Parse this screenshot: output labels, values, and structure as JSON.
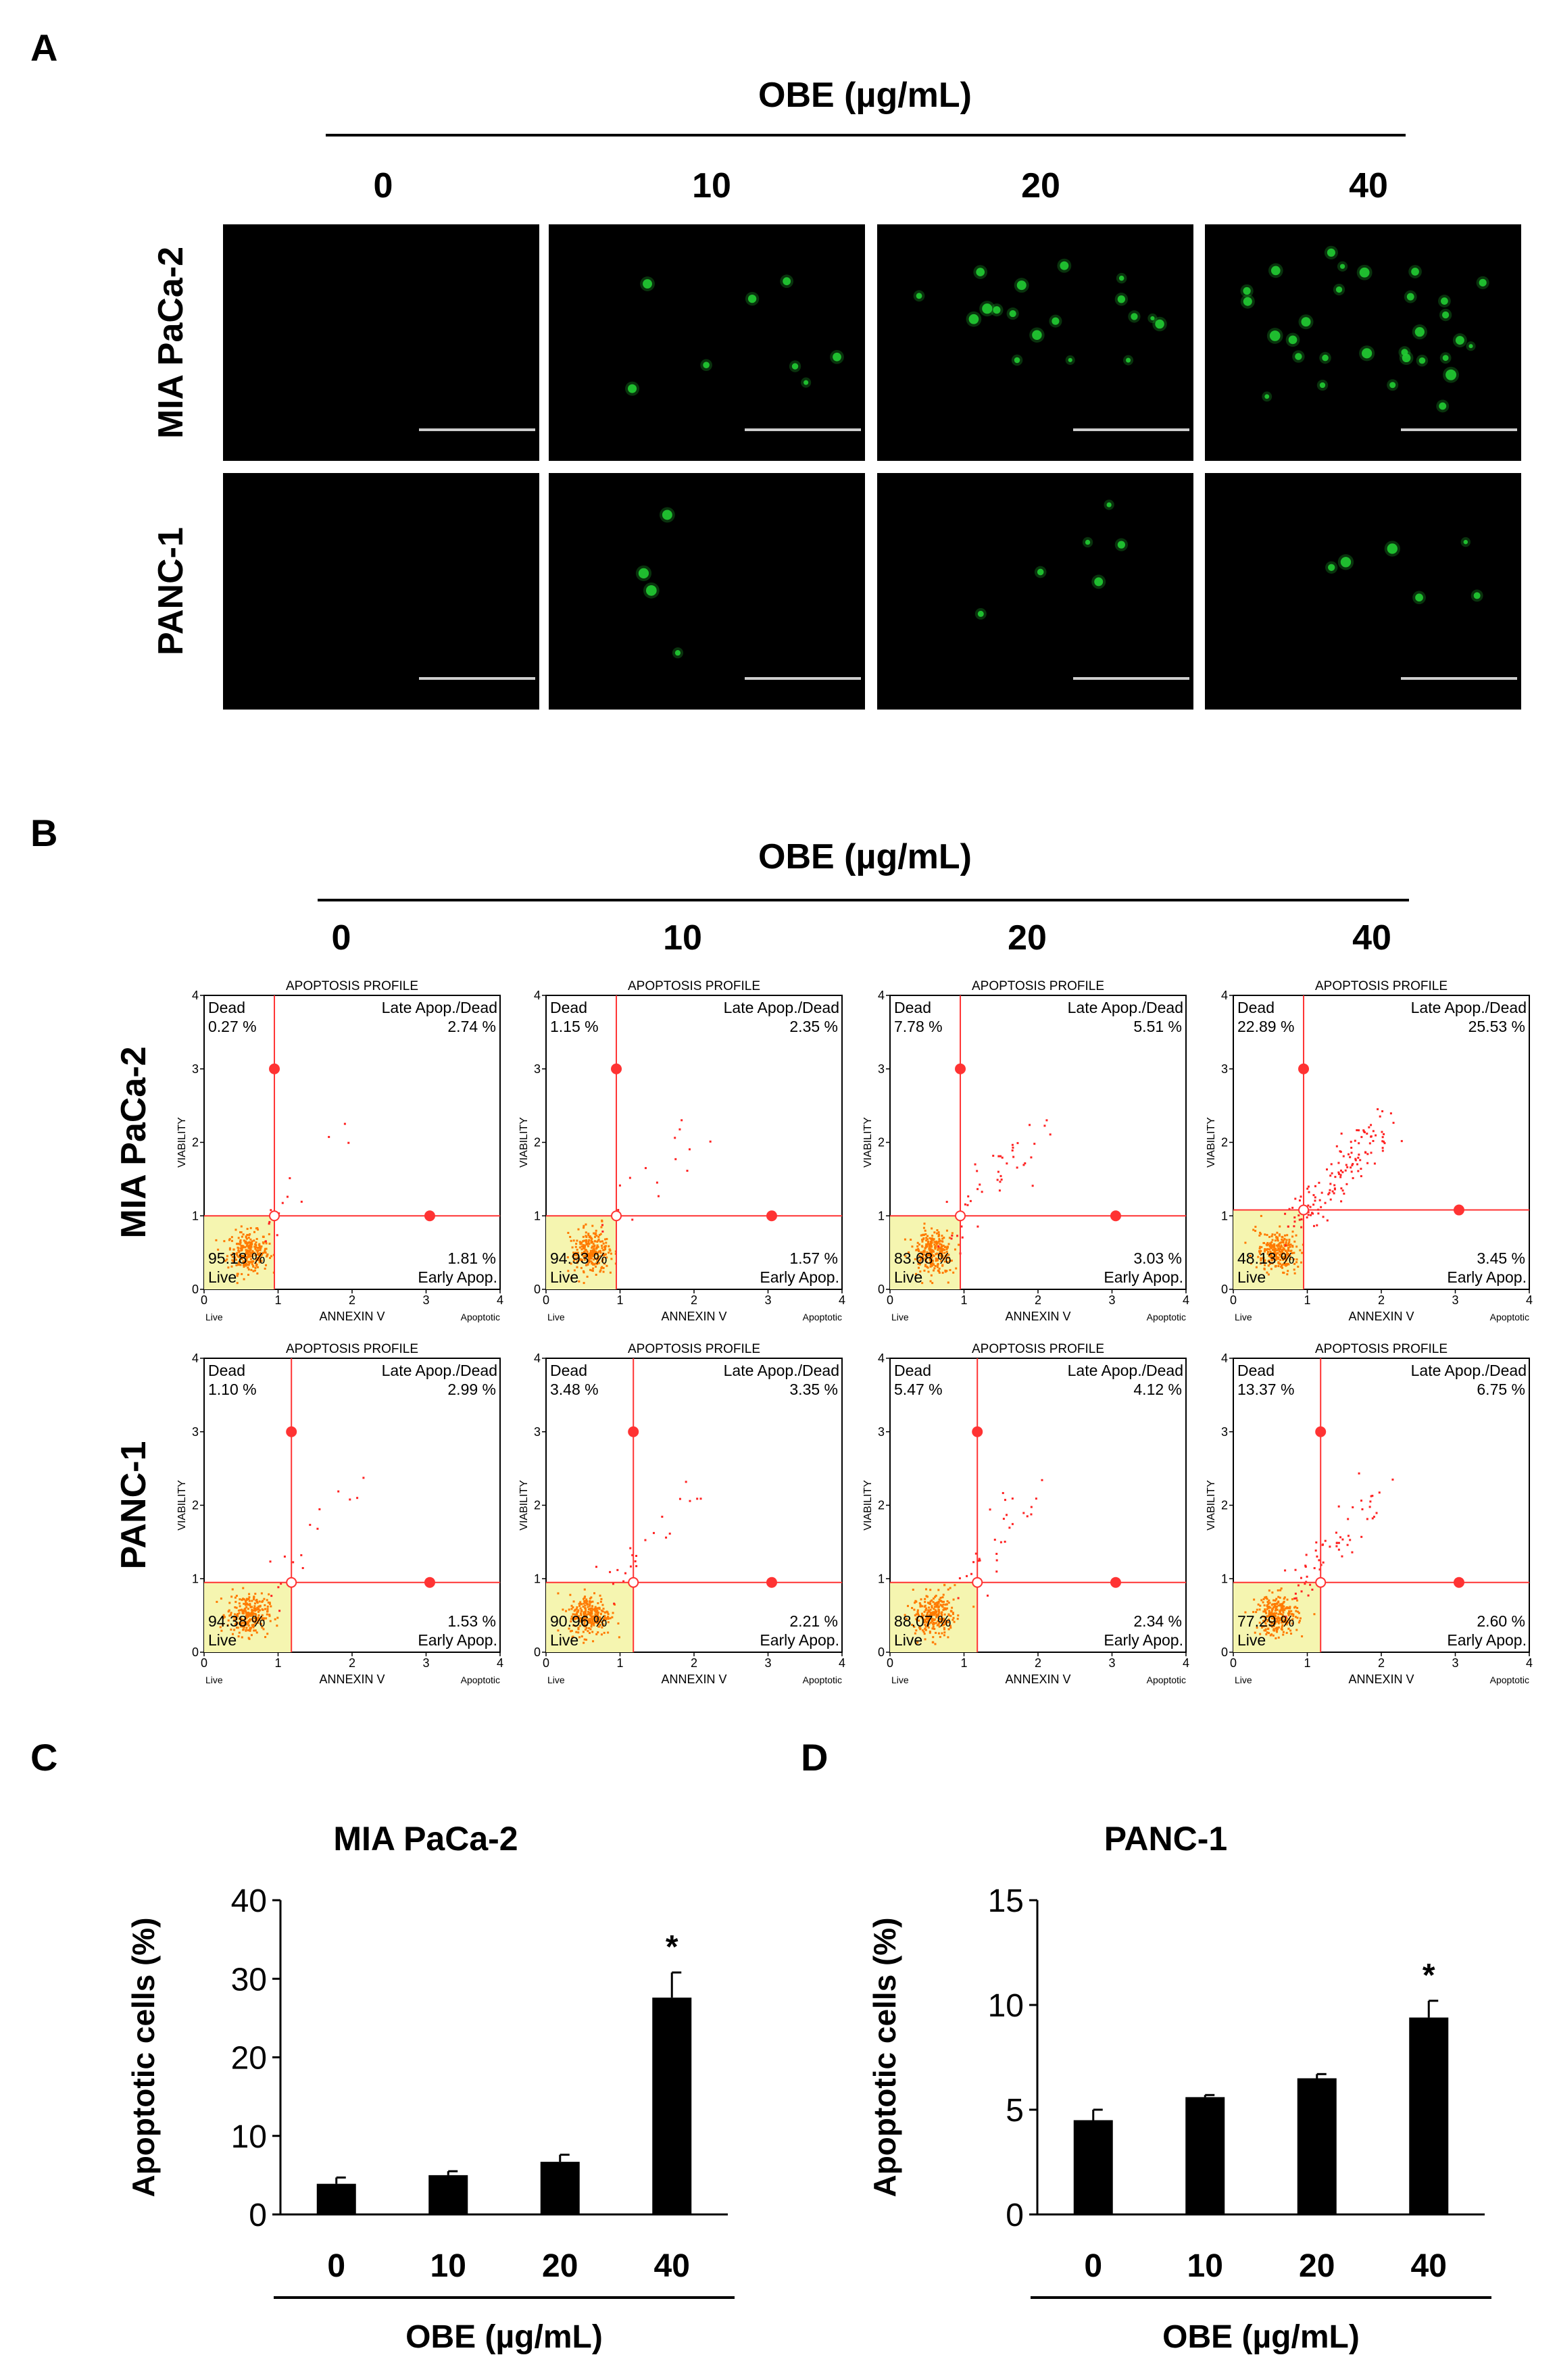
{
  "panels": {
    "A": "A",
    "B": "B",
    "C": "C",
    "D": "D"
  },
  "treatment_label": "OBE (µg/mL)",
  "doses": [
    "0",
    "10",
    "20",
    "40"
  ],
  "cell_lines": [
    "MIA PaCa-2",
    "PANC-1"
  ],
  "colors": {
    "micrograph_bg": "#000000",
    "fluorescence": "#22cc33",
    "gate": "#ff3333",
    "live_region": "#f5f5b0",
    "live_dots": "#ff7a00",
    "dots": "#ff2222",
    "bars": "#000000"
  },
  "flow": {
    "profile_title": "APOPTOSIS PROFILE",
    "xlabel": "ANNEXIN V",
    "ylabel": "VIABILITY",
    "x_left": "Live",
    "x_right": "Apoptotic",
    "q_dead": "Dead",
    "q_late": "Late Apop./Dead",
    "q_live": "Live",
    "q_early": "Early Apop.",
    "axis_ticks": [
      "0",
      "1",
      "2",
      "3",
      "4"
    ],
    "plots": [
      [
        {
          "dead": "0.27 %",
          "late": "2.74 %",
          "live": "95.18 %",
          "early": "1.81 %"
        },
        {
          "dead": "1.15 %",
          "late": "2.35 %",
          "live": "94.93 %",
          "early": "1.57 %"
        },
        {
          "dead": "7.78 %",
          "late": "5.51 %",
          "live": "83.68 %",
          "early": "3.03 %"
        },
        {
          "dead": "22.89 %",
          "late": "25.53 %",
          "live": "48.13 %",
          "early": "3.45 %"
        }
      ],
      [
        {
          "dead": "1.10 %",
          "late": "2.99 %",
          "live": "94.38 %",
          "early": "1.53 %"
        },
        {
          "dead": "3.48 %",
          "late": "3.35 %",
          "live": "90.96 %",
          "early": "2.21 %"
        },
        {
          "dead": "5.47 %",
          "late": "4.12 %",
          "live": "88.07 %",
          "early": "2.34 %"
        },
        {
          "dead": "13.37 %",
          "late": "6.75 %",
          "live": "77.29 %",
          "early": "2.60 %"
        }
      ]
    ]
  },
  "chart_data": [
    {
      "type": "bar",
      "title": "MIA PaCa-2",
      "categories": [
        "0",
        "10",
        "20",
        "40"
      ],
      "values": [
        3.9,
        5.0,
        6.7,
        27.6
      ],
      "errors": [
        0.8,
        0.5,
        0.9,
        3.2
      ],
      "significance": [
        "",
        "",
        "",
        "*"
      ],
      "ylabel": "Apoptotic cells (%)",
      "xlabel": "OBE (µg/mL)",
      "ylim": [
        0,
        40
      ],
      "yticks": [
        "0",
        "10",
        "20",
        "30",
        "40"
      ]
    },
    {
      "type": "bar",
      "title": "PANC-1",
      "categories": [
        "0",
        "10",
        "20",
        "40"
      ],
      "values": [
        4.5,
        5.6,
        6.5,
        9.4
      ],
      "errors": [
        0.5,
        0.1,
        0.2,
        0.8
      ],
      "significance": [
        "",
        "",
        "",
        "*"
      ],
      "ylabel": "Apoptotic cells (%)",
      "xlabel": "OBE (µg/mL)",
      "ylim": [
        0,
        15
      ],
      "yticks": [
        "0",
        "5",
        "10",
        "15"
      ]
    }
  ]
}
